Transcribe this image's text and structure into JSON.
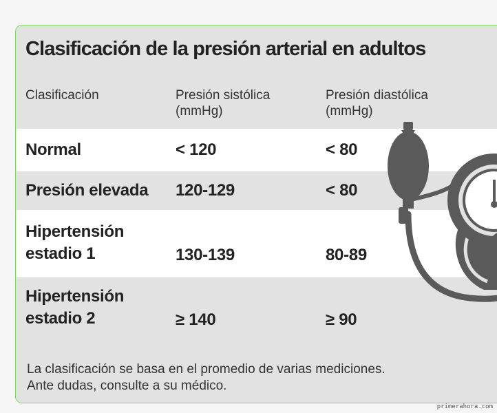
{
  "table": {
    "title": "Clasificación de la presión arterial en adultos",
    "headers": {
      "classification": "Clasificación",
      "systolic_line1": "Presión sistólica",
      "systolic_line2": "(mmHg)",
      "diastolic_line1": "Presión diastólica",
      "diastolic_line2": "(mmHg)"
    },
    "rows": [
      {
        "label_line1": "Normal",
        "label_line2": "",
        "systolic": "< 120",
        "diastolic": "< 80"
      },
      {
        "label_line1": "Presión elevada",
        "label_line2": "",
        "systolic": "120-129",
        "diastolic": "< 80"
      },
      {
        "label_line1": "Hipertensión",
        "label_line2": "estadio 1",
        "systolic": "130-139",
        "diastolic": "80-89"
      },
      {
        "label_line1": "Hipertensión",
        "label_line2": "estadio 2",
        "systolic": "≥ 140",
        "diastolic": "≥ 90"
      }
    ],
    "note_line1": "La clasificación se basa en el promedio de varias mediciones.",
    "note_line2": "Ante dudas, consulte a su médico."
  },
  "illustration": {
    "icon": "blood-pressure-monitor-icon",
    "color": "#5a5a5a"
  },
  "credit": "primerahora.com",
  "colors": {
    "border": "#7ed957",
    "row_highlight": "#ffffff",
    "background": "#e2e2e2"
  }
}
